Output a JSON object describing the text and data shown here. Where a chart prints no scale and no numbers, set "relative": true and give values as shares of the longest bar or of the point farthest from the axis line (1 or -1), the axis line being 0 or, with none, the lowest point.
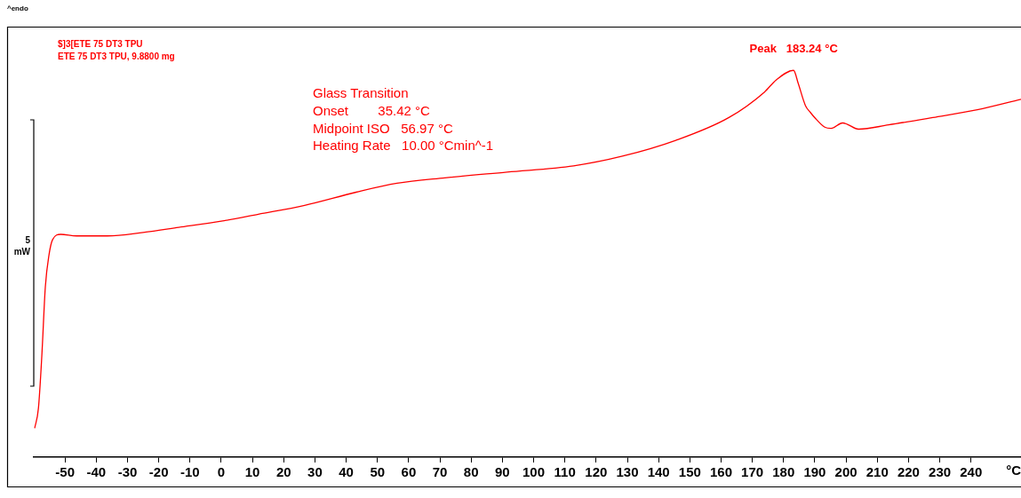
{
  "chart_data": {
    "type": "line",
    "relative": true,
    "xlabel": "°C",
    "ylabel": "5 mW",
    "xlim": [
      -60,
      256
    ],
    "xticks": [
      -50,
      -40,
      -30,
      -20,
      -10,
      0,
      10,
      20,
      30,
      40,
      50,
      60,
      70,
      80,
      90,
      100,
      110,
      120,
      130,
      140,
      150,
      160,
      170,
      180,
      190,
      200,
      210,
      220,
      230,
      240
    ],
    "grid": false,
    "legend": false,
    "marker": "none",
    "line_style": "solid",
    "series": [
      {
        "color": "#ff0000",
        "x": [
          -59.7,
          -58.5,
          -57.4,
          -56.3,
          -55.1,
          -54.0,
          -51.4,
          -46.3,
          -36.4,
          -25,
          -13.6,
          0,
          11.9,
          26.7,
          43.2,
          56.3,
          71.6,
          91.5,
          112.8,
          128.4,
          145.5,
          162.5,
          173.9,
          177.6,
          183.2,
          184.7,
          187,
          188.6,
          190.3,
          193.2,
          195.2,
          198.9,
          200.3,
          204,
          213.6,
          227.8,
          242,
          256
        ],
        "values": [
          0.075,
          0.127,
          0.265,
          0.44,
          0.524,
          0.562,
          0.576,
          0.572,
          0.572,
          0.581,
          0.594,
          0.61,
          0.628,
          0.651,
          0.685,
          0.708,
          0.722,
          0.737,
          0.753,
          0.778,
          0.819,
          0.878,
          0.944,
          0.975,
          1,
          0.966,
          0.909,
          0.891,
          0.875,
          0.853,
          0.85,
          0.864,
          0.861,
          0.848,
          0.859,
          0.878,
          0.898,
          0.925
        ]
      }
    ],
    "annotations": [
      "^endo",
      "$]3[ETE 75 DT3 TPU",
      "ETE 75 DT3 TPU, 9.8800 mg",
      "Glass Transition",
      "Onset        35.42 °C",
      "Midpoint ISO   56.97 °C",
      "Heating Rate   10.00 °Cmin^-1",
      {
        "text": "Peak   183.24 °C",
        "x": 183.24,
        "y": 1
      }
    ]
  }
}
